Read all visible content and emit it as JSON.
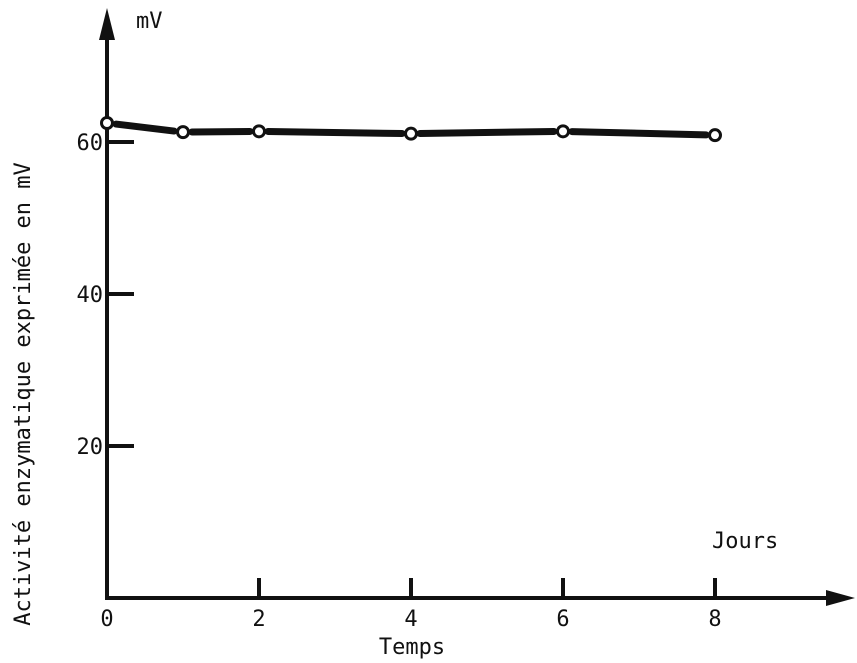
{
  "chart_data": {
    "type": "line",
    "title": "",
    "xlabel": "Temps",
    "ylabel": "Activité enzymatique exprimée en mV",
    "x_unit": "Jours",
    "y_unit": "mV",
    "xlim": [
      0,
      10
    ],
    "ylim": [
      0,
      80
    ],
    "x_ticks": [
      0,
      2,
      4,
      6,
      8
    ],
    "x_tick_labels": [
      "0",
      "2",
      "4",
      "6",
      "8"
    ],
    "y_ticks": [
      20,
      40,
      60
    ],
    "y_tick_labels": [
      "20",
      "40",
      "60"
    ],
    "grid": false,
    "legend": "none",
    "colors": {
      "ink": "#111111",
      "background": "#ffffff"
    },
    "series": [
      {
        "x": [
          0,
          1,
          2,
          4,
          6,
          8
        ],
        "y": [
          62.5,
          61.3,
          61.4,
          61.1,
          61.4,
          60.9
        ]
      }
    ]
  }
}
